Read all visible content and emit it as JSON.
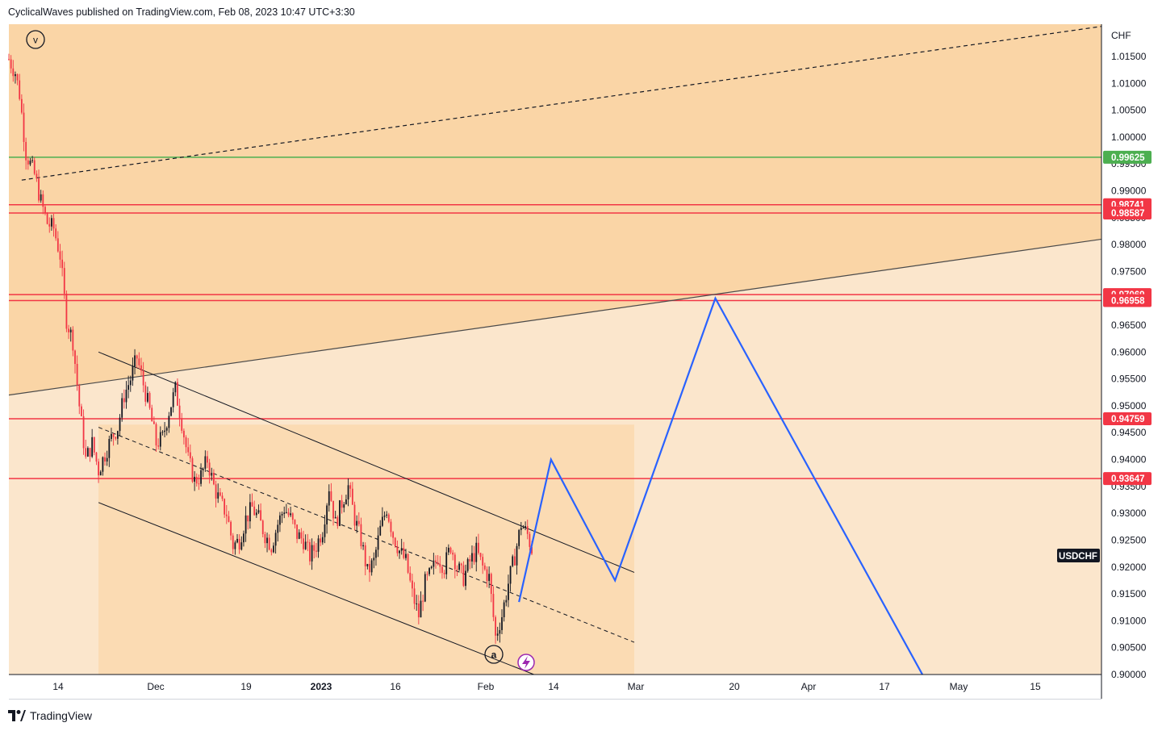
{
  "header": {
    "published": "CyclicalWaves published on TradingView.com, Feb 08, 2023 10:47 UTC+3:30"
  },
  "footer": {
    "brand": "TradingView"
  },
  "colors": {
    "background": "#fbe6cc",
    "upper_zone": "#fad5a6",
    "channel_zone": "#fbdbb3",
    "level_red": "#f23645",
    "level_green": "#4caf50",
    "projection": "#2962ff",
    "candle_up": "#131722",
    "candle_down": "#f23645"
  },
  "chart_data": {
    "type": "candlestick",
    "symbol": "USDCHF",
    "currency": "CHF",
    "ylim": [
      0.9,
      1.021
    ],
    "y_ticks": [
      "1.01500",
      "1.01000",
      "1.00500",
      "1.00000",
      "0.99500",
      "0.99000",
      "0.98500",
      "0.98000",
      "0.97500",
      "0.97000",
      "0.96500",
      "0.96000",
      "0.95500",
      "0.95000",
      "0.94500",
      "0.94000",
      "0.93500",
      "0.93000",
      "0.92500",
      "0.92000",
      "0.91500",
      "0.91000",
      "0.90500",
      "0.90000"
    ],
    "x_ticks": [
      "14",
      "Dec",
      "19",
      "2023",
      "16",
      "Feb",
      "14",
      "Mar",
      "20",
      "Apr",
      "17",
      "May",
      "15"
    ],
    "x_ticks_bold": [
      "2023"
    ],
    "horizontal_levels": [
      {
        "label": "0.99625",
        "value": 0.99625,
        "color": "green"
      },
      {
        "label": "0.98741",
        "value": 0.98741,
        "color": "red"
      },
      {
        "label": "0.98587",
        "value": 0.98587,
        "color": "red"
      },
      {
        "label": "0.97069",
        "value": 0.97069,
        "color": "red"
      },
      {
        "label": "0.96958",
        "value": 0.96958,
        "color": "red"
      },
      {
        "label": "0.94759",
        "value": 0.94759,
        "color": "red"
      },
      {
        "label": "0.93647",
        "value": 0.93647,
        "color": "red"
      }
    ],
    "wave_labels": {
      "v": "v",
      "a": "a"
    },
    "price_path": [
      [
        0,
        1.0145
      ],
      [
        3,
        1.012
      ],
      [
        5,
        1.008
      ],
      [
        8,
        0.997
      ],
      [
        12,
        0.993
      ],
      [
        15,
        0.988
      ],
      [
        18,
        0.984
      ],
      [
        21,
        0.983
      ],
      [
        24,
        0.978
      ],
      [
        27,
        0.966
      ],
      [
        30,
        0.962
      ],
      [
        33,
        0.95
      ],
      [
        36,
        0.94
      ],
      [
        39,
        0.943
      ],
      [
        42,
        0.938
      ],
      [
        45,
        0.941
      ],
      [
        48,
        0.944
      ],
      [
        51,
        0.946
      ],
      [
        54,
        0.952
      ],
      [
        57,
        0.955
      ],
      [
        60,
        0.959
      ],
      [
        63,
        0.954
      ],
      [
        66,
        0.949
      ],
      [
        69,
        0.943
      ],
      [
        72,
        0.944
      ],
      [
        75,
        0.949
      ],
      [
        78,
        0.953
      ],
      [
        81,
        0.947
      ],
      [
        84,
        0.94
      ],
      [
        87,
        0.936
      ],
      [
        90,
        0.937
      ],
      [
        93,
        0.94
      ],
      [
        96,
        0.935
      ],
      [
        99,
        0.932
      ],
      [
        102,
        0.93
      ],
      [
        105,
        0.924
      ],
      [
        108,
        0.925
      ],
      [
        111,
        0.929
      ],
      [
        114,
        0.931
      ],
      [
        117,
        0.929
      ],
      [
        120,
        0.926
      ],
      [
        123,
        0.924
      ],
      [
        126,
        0.928
      ],
      [
        129,
        0.931
      ],
      [
        132,
        0.929
      ],
      [
        135,
        0.926
      ],
      [
        138,
        0.925
      ],
      [
        141,
        0.922
      ],
      [
        144,
        0.924
      ],
      [
        147,
        0.927
      ],
      [
        150,
        0.935
      ],
      [
        153,
        0.928
      ],
      [
        156,
        0.932
      ],
      [
        159,
        0.935
      ],
      [
        162,
        0.929
      ],
      [
        165,
        0.925
      ],
      [
        168,
        0.919
      ],
      [
        171,
        0.921
      ],
      [
        174,
        0.927
      ],
      [
        177,
        0.931
      ],
      [
        180,
        0.926
      ],
      [
        183,
        0.923
      ],
      [
        186,
        0.921
      ],
      [
        189,
        0.915
      ],
      [
        192,
        0.911
      ],
      [
        195,
        0.917
      ],
      [
        198,
        0.919
      ],
      [
        201,
        0.922
      ],
      [
        204,
        0.92
      ],
      [
        207,
        0.924
      ],
      [
        210,
        0.92
      ],
      [
        213,
        0.918
      ],
      [
        216,
        0.921
      ],
      [
        219,
        0.923
      ],
      [
        222,
        0.92
      ],
      [
        225,
        0.918
      ],
      [
        228,
        0.907
      ],
      [
        231,
        0.911
      ],
      [
        234,
        0.917
      ],
      [
        237,
        0.922
      ],
      [
        240,
        0.928
      ],
      [
        243,
        0.926
      ],
      [
        246,
        0.922
      ]
    ],
    "projection_path": [
      [
        239,
        0.9135
      ],
      [
        254,
        0.94
      ],
      [
        284,
        0.9175
      ],
      [
        331,
        0.97
      ],
      [
        428,
        0.9
      ]
    ],
    "channel": {
      "upper": [
        [
          42,
          0.96
        ],
        [
          293,
          0.919
        ]
      ],
      "middle": [
        [
          42,
          0.946
        ],
        [
          293,
          0.906
        ]
      ],
      "lower": [
        [
          42,
          0.932
        ],
        [
          246,
          0.9
        ]
      ],
      "box_x": [
        42,
        293
      ]
    },
    "big_channel": {
      "upper_dashed": [
        [
          6,
          0.992
        ],
        [
          512,
          1.0206
        ]
      ],
      "lower_solid": [
        [
          0,
          0.952
        ],
        [
          512,
          0.981
        ]
      ]
    }
  }
}
